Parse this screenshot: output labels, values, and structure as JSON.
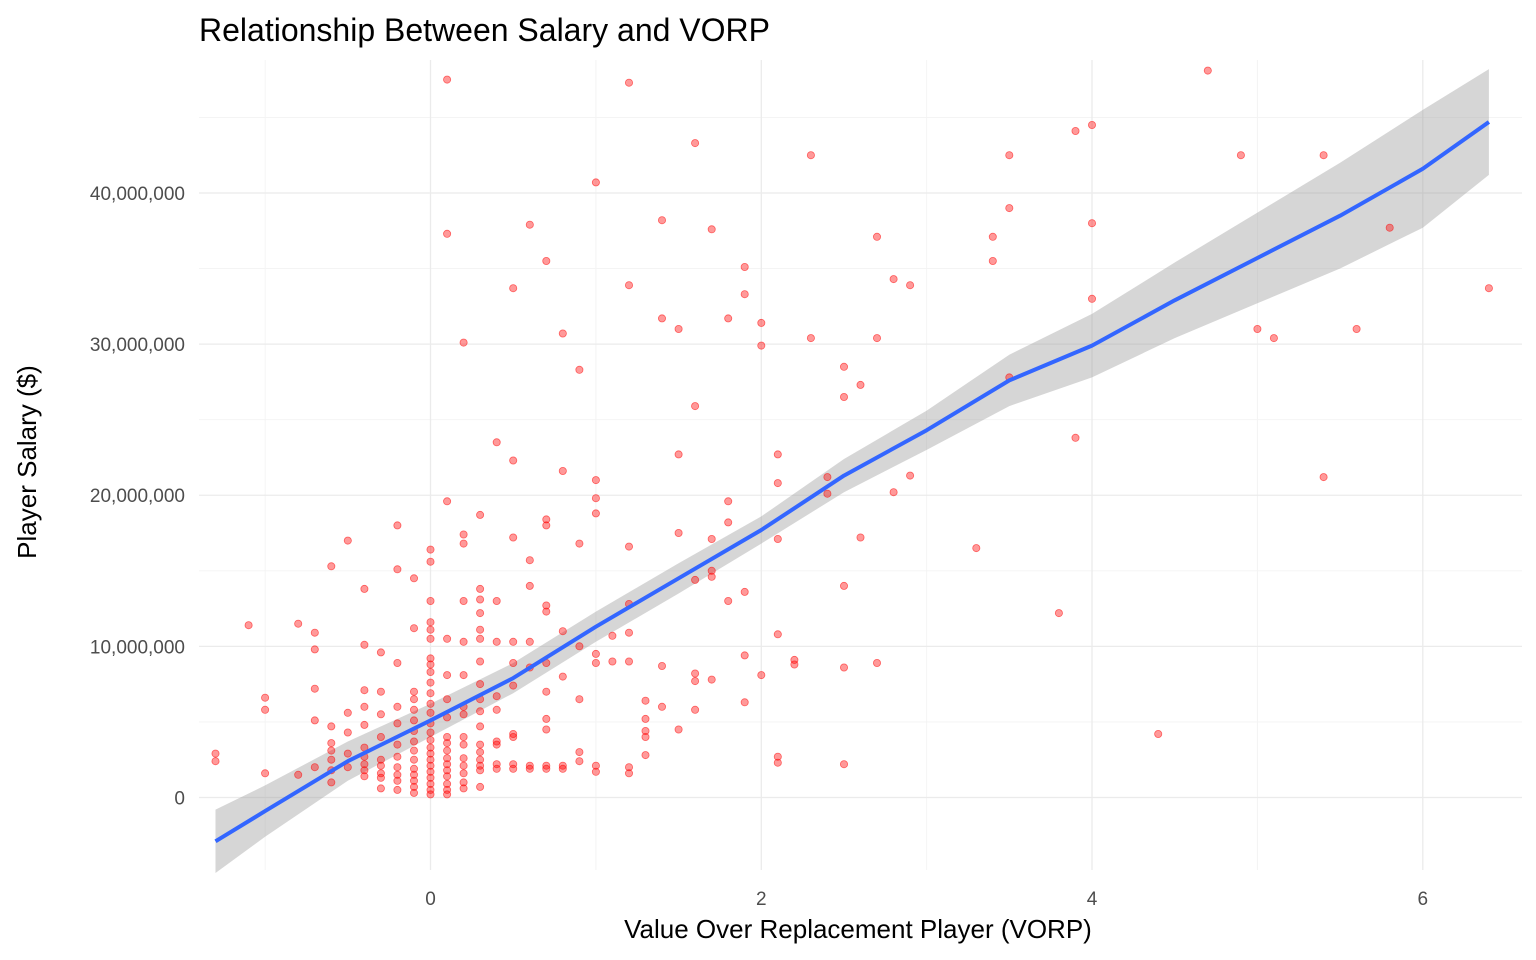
{
  "chart_data": {
    "type": "scatter",
    "title": "Relationship Between Salary and VORP",
    "xlabel": "Value Over Replacement Player (VORP)",
    "ylabel": "Player Salary ($)",
    "xlim": [
      -1.4,
      6.6
    ],
    "ylim": [
      -4800000,
      48800000
    ],
    "x_ticks": [
      0,
      2,
      4,
      6
    ],
    "x_tick_labels": [
      "0",
      "2",
      "4",
      "6"
    ],
    "y_ticks": [
      0,
      10000000,
      20000000,
      30000000,
      40000000
    ],
    "y_tick_labels": [
      "0",
      "10,000,000",
      "20,000,000",
      "30,000,000",
      "40,000,000"
    ],
    "grid": true,
    "point_color": "#ff0000",
    "fit_line_color": "#3366ff",
    "ribbon_color": "#999999",
    "points": [
      [
        -1.3,
        2900000
      ],
      [
        -1.3,
        2400000
      ],
      [
        -1.1,
        11400000
      ],
      [
        -1.0,
        6600000
      ],
      [
        -1.0,
        5800000
      ],
      [
        -1.0,
        1600000
      ],
      [
        -0.8,
        11500000
      ],
      [
        -0.8,
        1500000
      ],
      [
        -0.7,
        10900000
      ],
      [
        -0.7,
        9800000
      ],
      [
        -0.7,
        7200000
      ],
      [
        -0.7,
        5100000
      ],
      [
        -0.7,
        2000000
      ],
      [
        -0.6,
        15300000
      ],
      [
        -0.6,
        4700000
      ],
      [
        -0.6,
        3600000
      ],
      [
        -0.6,
        3100000
      ],
      [
        -0.6,
        2500000
      ],
      [
        -0.6,
        1800000
      ],
      [
        -0.6,
        1000000
      ],
      [
        -0.5,
        17000000
      ],
      [
        -0.5,
        5600000
      ],
      [
        -0.5,
        4300000
      ],
      [
        -0.5,
        2900000
      ],
      [
        -0.5,
        2000000
      ],
      [
        -0.4,
        13800000
      ],
      [
        -0.4,
        10100000
      ],
      [
        -0.4,
        7100000
      ],
      [
        -0.4,
        6000000
      ],
      [
        -0.4,
        4800000
      ],
      [
        -0.4,
        3300000
      ],
      [
        -0.4,
        2700000
      ],
      [
        -0.4,
        2200000
      ],
      [
        -0.4,
        1800000
      ],
      [
        -0.4,
        1400000
      ],
      [
        -0.3,
        9600000
      ],
      [
        -0.3,
        7000000
      ],
      [
        -0.3,
        5500000
      ],
      [
        -0.3,
        4000000
      ],
      [
        -0.3,
        2500000
      ],
      [
        -0.3,
        2100000
      ],
      [
        -0.3,
        1600000
      ],
      [
        -0.3,
        1300000
      ],
      [
        -0.3,
        600000
      ],
      [
        -0.2,
        18000000
      ],
      [
        -0.2,
        15100000
      ],
      [
        -0.2,
        8900000
      ],
      [
        -0.2,
        6000000
      ],
      [
        -0.2,
        4900000
      ],
      [
        -0.2,
        3500000
      ],
      [
        -0.2,
        2700000
      ],
      [
        -0.2,
        2000000
      ],
      [
        -0.2,
        1500000
      ],
      [
        -0.2,
        1100000
      ],
      [
        -0.2,
        500000
      ],
      [
        -0.1,
        14500000
      ],
      [
        -0.1,
        11200000
      ],
      [
        -0.1,
        7000000
      ],
      [
        -0.1,
        6500000
      ],
      [
        -0.1,
        5800000
      ],
      [
        -0.1,
        5100000
      ],
      [
        -0.1,
        4400000
      ],
      [
        -0.1,
        3700000
      ],
      [
        -0.1,
        3100000
      ],
      [
        -0.1,
        2500000
      ],
      [
        -0.1,
        1900000
      ],
      [
        -0.1,
        1500000
      ],
      [
        -0.1,
        1100000
      ],
      [
        -0.1,
        700000
      ],
      [
        -0.1,
        300000
      ],
      [
        0.0,
        16400000
      ],
      [
        0.0,
        15600000
      ],
      [
        0.0,
        13000000
      ],
      [
        0.0,
        11600000
      ],
      [
        0.0,
        11100000
      ],
      [
        0.0,
        10500000
      ],
      [
        0.0,
        9200000
      ],
      [
        0.0,
        8800000
      ],
      [
        0.0,
        8300000
      ],
      [
        0.0,
        7600000
      ],
      [
        0.0,
        6900000
      ],
      [
        0.0,
        6200000
      ],
      [
        0.0,
        5600000
      ],
      [
        0.0,
        4900000
      ],
      [
        0.0,
        4300000
      ],
      [
        0.0,
        3800000
      ],
      [
        0.0,
        3300000
      ],
      [
        0.0,
        2900000
      ],
      [
        0.0,
        2500000
      ],
      [
        0.0,
        2100000
      ],
      [
        0.0,
        1700000
      ],
      [
        0.0,
        1300000
      ],
      [
        0.0,
        900000
      ],
      [
        0.0,
        500000
      ],
      [
        0.0,
        200000
      ],
      [
        0.1,
        47500000
      ],
      [
        0.1,
        37300000
      ],
      [
        0.1,
        19600000
      ],
      [
        0.1,
        10500000
      ],
      [
        0.1,
        8100000
      ],
      [
        0.1,
        6500000
      ],
      [
        0.1,
        5300000
      ],
      [
        0.1,
        4000000
      ],
      [
        0.1,
        3600000
      ],
      [
        0.1,
        3100000
      ],
      [
        0.1,
        2600000
      ],
      [
        0.1,
        2200000
      ],
      [
        0.1,
        1800000
      ],
      [
        0.1,
        1400000
      ],
      [
        0.1,
        900000
      ],
      [
        0.1,
        500000
      ],
      [
        0.1,
        200000
      ],
      [
        0.2,
        30100000
      ],
      [
        0.2,
        17400000
      ],
      [
        0.2,
        16800000
      ],
      [
        0.2,
        13000000
      ],
      [
        0.2,
        10300000
      ],
      [
        0.2,
        8100000
      ],
      [
        0.2,
        6000000
      ],
      [
        0.2,
        5500000
      ],
      [
        0.2,
        4000000
      ],
      [
        0.2,
        3500000
      ],
      [
        0.2,
        2600000
      ],
      [
        0.2,
        2100000
      ],
      [
        0.2,
        1600000
      ],
      [
        0.2,
        1000000
      ],
      [
        0.2,
        600000
      ],
      [
        0.3,
        18700000
      ],
      [
        0.3,
        13800000
      ],
      [
        0.3,
        13100000
      ],
      [
        0.3,
        12200000
      ],
      [
        0.3,
        11100000
      ],
      [
        0.3,
        10500000
      ],
      [
        0.3,
        9000000
      ],
      [
        0.3,
        7500000
      ],
      [
        0.3,
        6500000
      ],
      [
        0.3,
        5700000
      ],
      [
        0.3,
        4700000
      ],
      [
        0.3,
        3500000
      ],
      [
        0.3,
        3000000
      ],
      [
        0.3,
        2500000
      ],
      [
        0.3,
        2100000
      ],
      [
        0.3,
        1800000
      ],
      [
        0.3,
        700000
      ],
      [
        0.4,
        23500000
      ],
      [
        0.4,
        13000000
      ],
      [
        0.4,
        10300000
      ],
      [
        0.4,
        6700000
      ],
      [
        0.4,
        5800000
      ],
      [
        0.4,
        3700000
      ],
      [
        0.4,
        3500000
      ],
      [
        0.4,
        2200000
      ],
      [
        0.4,
        1900000
      ],
      [
        0.5,
        33700000
      ],
      [
        0.5,
        22300000
      ],
      [
        0.5,
        17200000
      ],
      [
        0.5,
        10300000
      ],
      [
        0.5,
        8900000
      ],
      [
        0.5,
        7400000
      ],
      [
        0.5,
        4200000
      ],
      [
        0.5,
        4000000
      ],
      [
        0.5,
        2200000
      ],
      [
        0.5,
        1900000
      ],
      [
        0.6,
        37900000
      ],
      [
        0.6,
        15700000
      ],
      [
        0.6,
        14000000
      ],
      [
        0.6,
        10300000
      ],
      [
        0.6,
        8600000
      ],
      [
        0.6,
        2100000
      ],
      [
        0.6,
        1900000
      ],
      [
        0.7,
        35500000
      ],
      [
        0.7,
        18400000
      ],
      [
        0.7,
        18000000
      ],
      [
        0.7,
        12700000
      ],
      [
        0.7,
        12300000
      ],
      [
        0.7,
        8900000
      ],
      [
        0.7,
        7000000
      ],
      [
        0.7,
        5200000
      ],
      [
        0.7,
        4500000
      ],
      [
        0.7,
        2100000
      ],
      [
        0.7,
        1900000
      ],
      [
        0.8,
        30700000
      ],
      [
        0.8,
        21600000
      ],
      [
        0.8,
        11000000
      ],
      [
        0.8,
        8000000
      ],
      [
        0.8,
        2100000
      ],
      [
        0.8,
        1900000
      ],
      [
        0.9,
        28300000
      ],
      [
        0.9,
        16800000
      ],
      [
        0.9,
        10000000
      ],
      [
        0.9,
        6500000
      ],
      [
        0.9,
        3000000
      ],
      [
        0.9,
        2400000
      ],
      [
        1.0,
        40700000
      ],
      [
        1.0,
        21000000
      ],
      [
        1.0,
        19800000
      ],
      [
        1.0,
        18800000
      ],
      [
        1.0,
        9500000
      ],
      [
        1.0,
        8900000
      ],
      [
        1.0,
        2100000
      ],
      [
        1.0,
        1700000
      ],
      [
        1.1,
        10700000
      ],
      [
        1.1,
        9000000
      ],
      [
        1.2,
        47300000
      ],
      [
        1.2,
        33900000
      ],
      [
        1.2,
        16600000
      ],
      [
        1.2,
        12800000
      ],
      [
        1.2,
        10900000
      ],
      [
        1.2,
        9000000
      ],
      [
        1.2,
        2000000
      ],
      [
        1.2,
        1600000
      ],
      [
        1.3,
        6400000
      ],
      [
        1.3,
        5200000
      ],
      [
        1.3,
        4400000
      ],
      [
        1.3,
        4000000
      ],
      [
        1.3,
        2800000
      ],
      [
        1.4,
        38200000
      ],
      [
        1.4,
        31700000
      ],
      [
        1.4,
        8700000
      ],
      [
        1.4,
        6000000
      ],
      [
        1.5,
        31000000
      ],
      [
        1.5,
        22700000
      ],
      [
        1.5,
        17500000
      ],
      [
        1.5,
        4500000
      ],
      [
        1.6,
        43300000
      ],
      [
        1.6,
        25900000
      ],
      [
        1.6,
        14400000
      ],
      [
        1.6,
        8200000
      ],
      [
        1.6,
        7700000
      ],
      [
        1.6,
        5800000
      ],
      [
        1.7,
        37600000
      ],
      [
        1.7,
        17100000
      ],
      [
        1.7,
        15000000
      ],
      [
        1.7,
        14600000
      ],
      [
        1.7,
        7800000
      ],
      [
        1.8,
        31700000
      ],
      [
        1.8,
        19600000
      ],
      [
        1.8,
        18200000
      ],
      [
        1.8,
        13000000
      ],
      [
        1.9,
        35100000
      ],
      [
        1.9,
        33300000
      ],
      [
        1.9,
        13600000
      ],
      [
        1.9,
        9400000
      ],
      [
        1.9,
        6300000
      ],
      [
        2.0,
        31400000
      ],
      [
        2.0,
        29900000
      ],
      [
        2.0,
        8100000
      ],
      [
        2.1,
        22700000
      ],
      [
        2.1,
        20800000
      ],
      [
        2.1,
        17100000
      ],
      [
        2.1,
        10800000
      ],
      [
        2.1,
        2700000
      ],
      [
        2.1,
        2300000
      ],
      [
        2.2,
        9100000
      ],
      [
        2.2,
        8800000
      ],
      [
        2.3,
        42500000
      ],
      [
        2.3,
        30400000
      ],
      [
        2.4,
        21200000
      ],
      [
        2.4,
        20100000
      ],
      [
        2.5,
        28500000
      ],
      [
        2.5,
        26500000
      ],
      [
        2.5,
        14000000
      ],
      [
        2.5,
        8600000
      ],
      [
        2.5,
        2200000
      ],
      [
        2.6,
        27300000
      ],
      [
        2.6,
        17200000
      ],
      [
        2.7,
        37100000
      ],
      [
        2.7,
        30400000
      ],
      [
        2.7,
        8900000
      ],
      [
        2.8,
        34300000
      ],
      [
        2.8,
        20200000
      ],
      [
        2.9,
        33900000
      ],
      [
        2.9,
        21300000
      ],
      [
        3.3,
        16500000
      ],
      [
        3.4,
        37100000
      ],
      [
        3.4,
        35500000
      ],
      [
        3.5,
        42500000
      ],
      [
        3.5,
        39000000
      ],
      [
        3.5,
        27800000
      ],
      [
        3.8,
        12200000
      ],
      [
        3.9,
        44100000
      ],
      [
        3.9,
        23800000
      ],
      [
        4.0,
        44500000
      ],
      [
        4.0,
        38000000
      ],
      [
        4.0,
        33000000
      ],
      [
        4.4,
        4200000
      ],
      [
        4.7,
        48100000
      ],
      [
        4.9,
        42500000
      ],
      [
        5.0,
        31000000
      ],
      [
        5.1,
        30400000
      ],
      [
        5.4,
        42500000
      ],
      [
        5.4,
        21200000
      ],
      [
        5.6,
        31000000
      ],
      [
        5.8,
        37700000
      ],
      [
        6.4,
        33700000
      ]
    ],
    "fit_line": [
      [
        -1.3,
        -2900000
      ],
      [
        -1.0,
        -900000
      ],
      [
        -0.5,
        2400000
      ],
      [
        0.0,
        5100000
      ],
      [
        0.5,
        7900000
      ],
      [
        1.0,
        11300000
      ],
      [
        1.5,
        14500000
      ],
      [
        2.0,
        17700000
      ],
      [
        2.5,
        21300000
      ],
      [
        3.0,
        24300000
      ],
      [
        3.5,
        27600000
      ],
      [
        4.0,
        29900000
      ],
      [
        4.5,
        32900000
      ],
      [
        5.0,
        35700000
      ],
      [
        5.5,
        38500000
      ],
      [
        6.0,
        41600000
      ],
      [
        6.4,
        44700000
      ]
    ],
    "ribbon": [
      [
        -1.3,
        -5000000,
        -800000
      ],
      [
        -1.0,
        -2600000,
        800000
      ],
      [
        -0.5,
        1100000,
        3700000
      ],
      [
        0.0,
        4000000,
        6200000
      ],
      [
        0.5,
        6900000,
        8900000
      ],
      [
        1.0,
        10300000,
        12300000
      ],
      [
        1.5,
        13500000,
        15500000
      ],
      [
        2.0,
        16800000,
        18600000
      ],
      [
        2.5,
        20200000,
        22400000
      ],
      [
        3.0,
        23000000,
        25600000
      ],
      [
        3.5,
        25900000,
        29300000
      ],
      [
        4.0,
        27800000,
        32000000
      ],
      [
        4.5,
        30400000,
        35400000
      ],
      [
        5.0,
        32700000,
        38700000
      ],
      [
        5.5,
        35000000,
        42000000
      ],
      [
        6.0,
        37700000,
        45500000
      ],
      [
        6.4,
        41200000,
        48200000
      ]
    ]
  }
}
